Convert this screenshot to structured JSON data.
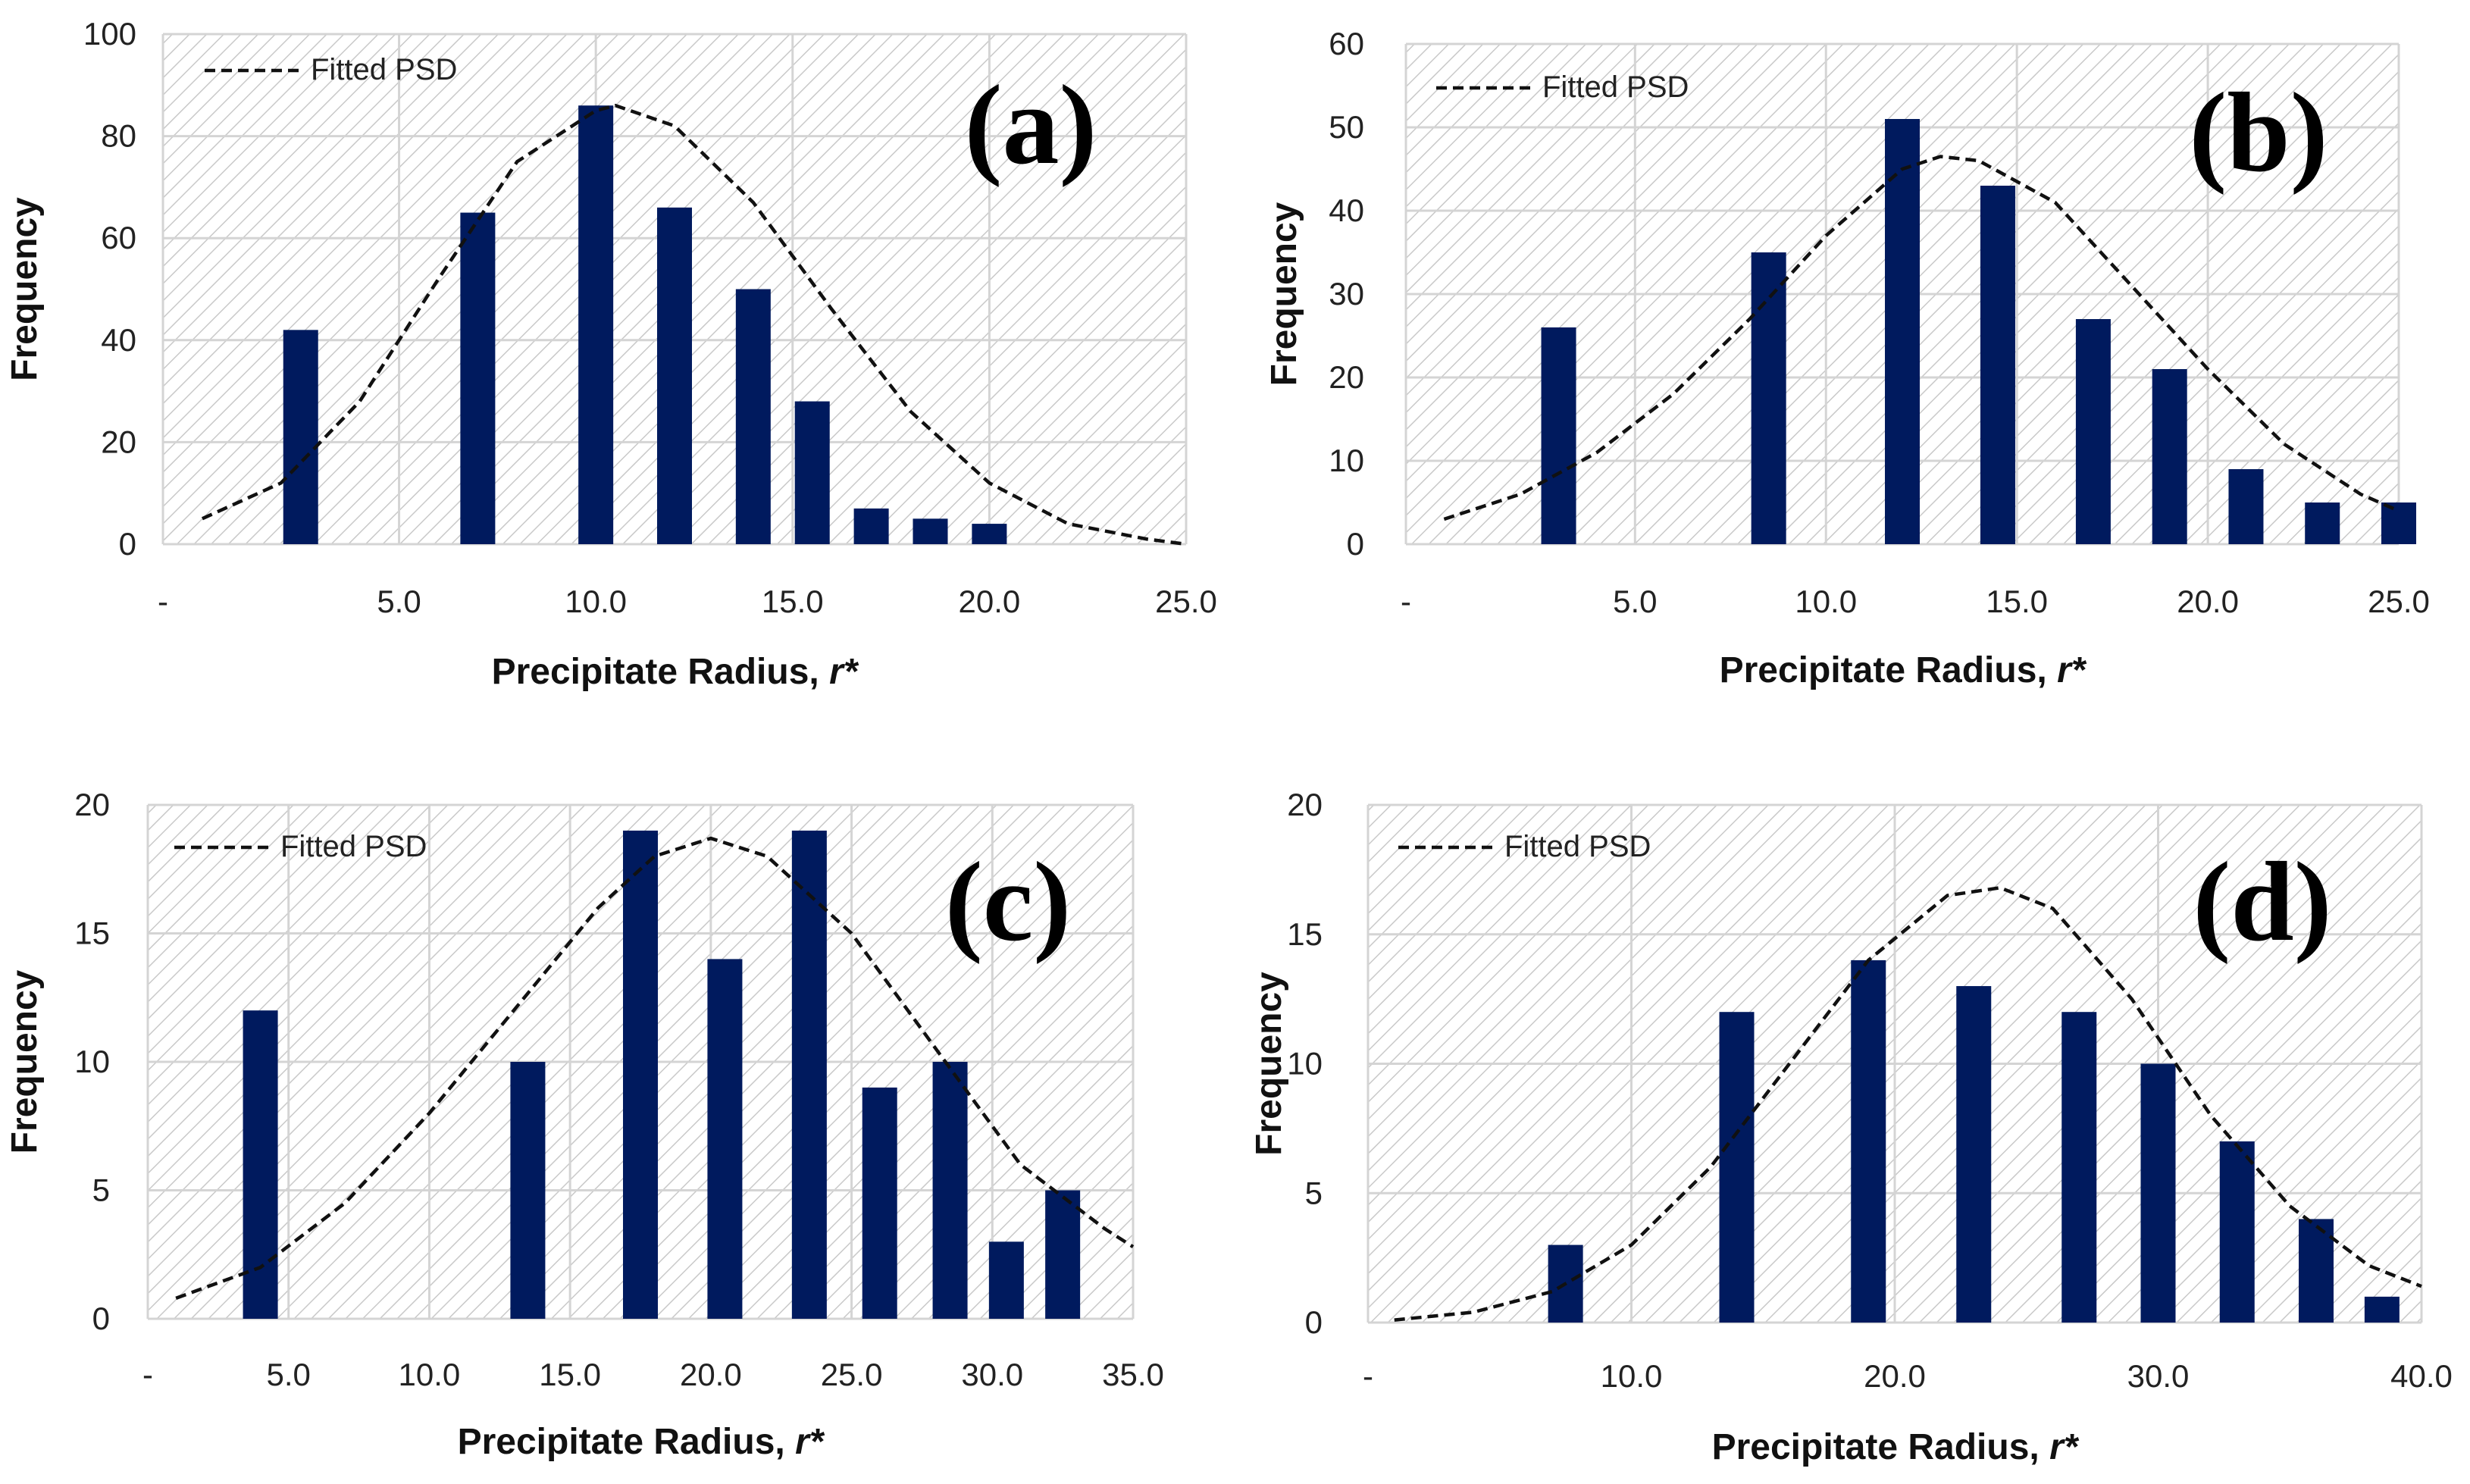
{
  "colors": {
    "bar": "#001a5e",
    "curve": "#111111",
    "grid": "#d4d4d4",
    "hatch": "#c9c9c9"
  },
  "chart_data": [
    {
      "type": "bar",
      "panel_label": "(a)",
      "xlabel": "Precipitate Radius, ",
      "xlabel_italic": "r*",
      "ylabel": "Frequency",
      "xlim": [
        -1.0,
        25.0
      ],
      "ylim": [
        0,
        100
      ],
      "yticks": [
        "0",
        "20",
        "40",
        "60",
        "80",
        "100"
      ],
      "xticks": [
        {
          "value": -1.0,
          "label": "-"
        },
        {
          "value": 5.0,
          "label": "5.0"
        },
        {
          "value": 10.0,
          "label": "10.0"
        },
        {
          "value": 15.0,
          "label": "15.0"
        },
        {
          "value": 20.0,
          "label": "20.0"
        },
        {
          "value": 25.0,
          "label": "25.0"
        }
      ],
      "x": [
        2.5,
        7.0,
        10.0,
        12.0,
        14.0,
        15.5,
        17.0,
        18.5,
        20.0
      ],
      "values": [
        42,
        65,
        86,
        66,
        50,
        28,
        7,
        5,
        4
      ],
      "legend": {
        "label": "Fitted PSD",
        "position": "top-left"
      },
      "fit": {
        "name": "Fitted PSD",
        "x": [
          0,
          2,
          4,
          6,
          8,
          10,
          10.5,
          12,
          14,
          16,
          18,
          20,
          22,
          24,
          25
        ],
        "y": [
          5,
          12,
          28,
          52,
          75,
          85,
          86,
          82,
          67,
          46,
          26,
          12,
          4,
          1,
          0
        ]
      }
    },
    {
      "type": "bar",
      "panel_label": "(b)",
      "xlabel": "Precipitate Radius, ",
      "xlabel_italic": "r*",
      "ylabel": "Frequency",
      "xlim": [
        -1.0,
        25.0
      ],
      "ylim": [
        0,
        60
      ],
      "yticks": [
        "0",
        "10",
        "20",
        "30",
        "40",
        "50",
        "60"
      ],
      "xticks": [
        {
          "value": -1.0,
          "label": "-"
        },
        {
          "value": 5.0,
          "label": "5.0"
        },
        {
          "value": 10.0,
          "label": "10.0"
        },
        {
          "value": 15.0,
          "label": "15.0"
        },
        {
          "value": 20.0,
          "label": "20.0"
        },
        {
          "value": 25.0,
          "label": "25.0"
        }
      ],
      "x": [
        3.0,
        8.5,
        12.0,
        14.5,
        17.0,
        19.0,
        21.0,
        23.0,
        25.0
      ],
      "values": [
        26,
        35,
        51,
        43,
        27,
        21,
        9,
        5,
        5
      ],
      "legend": {
        "label": "Fitted PSD",
        "position": "top-left"
      },
      "fit": {
        "name": "Fitted PSD",
        "x": [
          0,
          2,
          4,
          6,
          8,
          10,
          12,
          13,
          14,
          16,
          18,
          20,
          22,
          24,
          25
        ],
        "y": [
          3,
          6,
          11,
          18,
          27,
          37,
          45,
          46.5,
          46,
          41,
          31,
          21,
          12,
          6,
          4
        ]
      }
    },
    {
      "type": "bar",
      "panel_label": "(c)",
      "xlabel": "Precipitate Radius, ",
      "xlabel_italic": "r*",
      "ylabel": "Frequency",
      "xlim": [
        0.0,
        35.0
      ],
      "ylim": [
        0,
        20
      ],
      "yticks": [
        "0",
        "5",
        "10",
        "15",
        "20"
      ],
      "xticks": [
        {
          "value": 0.0,
          "label": "-"
        },
        {
          "value": 5.0,
          "label": "5.0"
        },
        {
          "value": 10.0,
          "label": "10.0"
        },
        {
          "value": 15.0,
          "label": "15.0"
        },
        {
          "value": 20.0,
          "label": "20.0"
        },
        {
          "value": 25.0,
          "label": "25.0"
        },
        {
          "value": 30.0,
          "label": "30.0"
        },
        {
          "value": 35.0,
          "label": "35.0"
        }
      ],
      "x": [
        4.0,
        13.5,
        17.5,
        20.5,
        23.5,
        26.0,
        28.5,
        30.5,
        32.5
      ],
      "values": [
        12,
        10,
        19,
        14,
        19,
        9,
        10,
        3,
        5
      ],
      "legend": {
        "label": "Fitted PSD",
        "position": "top-left"
      },
      "fit": {
        "name": "Fitted PSD",
        "x": [
          1,
          4,
          7,
          10,
          13,
          16,
          18,
          20,
          22,
          25,
          28,
          31,
          34,
          35
        ],
        "y": [
          0.8,
          2,
          4.5,
          8,
          12,
          16,
          18,
          18.7,
          18,
          15,
          10.5,
          6,
          3.5,
          2.8
        ]
      }
    },
    {
      "type": "bar",
      "panel_label": "(d)",
      "xlabel": "Precipitate Radius,  ",
      "xlabel_italic": "r*",
      "ylabel": "Frequency",
      "xlim": [
        0.0,
        40.0
      ],
      "ylim": [
        0,
        20
      ],
      "yticks": [
        "0",
        "5",
        "10",
        "15",
        "20"
      ],
      "xticks": [
        {
          "value": 0.0,
          "label": "-"
        },
        {
          "value": 10.0,
          "label": "10.0"
        },
        {
          "value": 20.0,
          "label": "20.0"
        },
        {
          "value": 30.0,
          "label": "30.0"
        },
        {
          "value": 40.0,
          "label": "40.0"
        }
      ],
      "x": [
        7.5,
        14.0,
        19.0,
        23.0,
        27.0,
        30.0,
        33.0,
        36.0,
        38.5
      ],
      "values": [
        3,
        12,
        14,
        13,
        12,
        10,
        7,
        4,
        1
      ],
      "legend": {
        "label": "Fitted PSD",
        "position": "top-left"
      },
      "fit": {
        "name": "Fitted PSD",
        "x": [
          1,
          4,
          7,
          10,
          13,
          16,
          19,
          22,
          24,
          26,
          29,
          32,
          35,
          38,
          40
        ],
        "y": [
          0.1,
          0.4,
          1.2,
          3,
          6,
          10,
          14,
          16.5,
          16.8,
          16,
          12.5,
          8,
          4.5,
          2.2,
          1.4
        ]
      }
    }
  ]
}
